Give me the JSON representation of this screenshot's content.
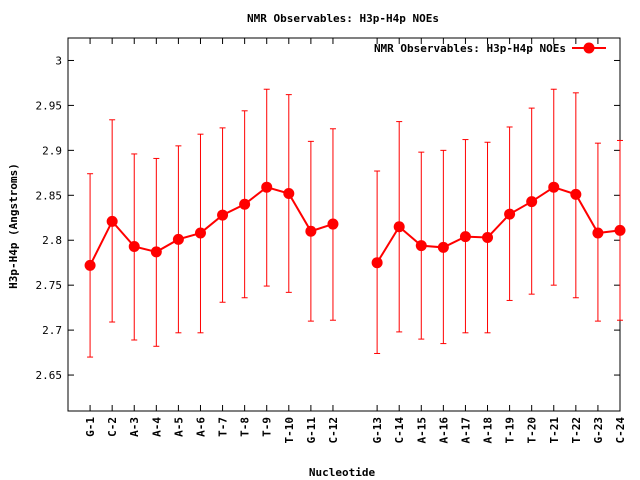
{
  "chart_data": {
    "type": "line",
    "title": "NMR Observables: H3p-H4p NOEs",
    "xlabel": "Nucleotide",
    "ylabel": "H3p-H4p (Angstroms)",
    "ylim": [
      2.61,
      3.025
    ],
    "yticks": [
      2.65,
      2.7,
      2.75,
      2.8,
      2.85,
      2.9,
      2.95,
      3
    ],
    "ytick_labels": [
      "2.65",
      "2.7",
      "2.75",
      "2.8",
      "2.85",
      "2.9",
      "2.95",
      "3"
    ],
    "xlim": [
      0,
      25
    ],
    "legend": "top-right",
    "grid": false,
    "color": "#ff0000",
    "categories": [
      "G-1",
      "C-2",
      "A-3",
      "A-4",
      "A-5",
      "A-6",
      "T-7",
      "T-8",
      "T-9",
      "T-10",
      "G-11",
      "C-12",
      "G-13",
      "C-14",
      "A-15",
      "A-16",
      "A-17",
      "A-18",
      "T-19",
      "T-20",
      "T-21",
      "T-22",
      "G-23",
      "C-24"
    ],
    "x": [
      1,
      2,
      3,
      4,
      5,
      6,
      7,
      8,
      9,
      10,
      11,
      12,
      14,
      15,
      16,
      17,
      18,
      19,
      20,
      21,
      22,
      23,
      24,
      25
    ],
    "series": [
      {
        "name": "NMR Observables: H3p-H4p NOEs",
        "values": [
          2.772,
          2.821,
          2.793,
          2.787,
          2.801,
          2.808,
          2.828,
          2.84,
          2.859,
          2.852,
          2.81,
          2.818,
          2.775,
          2.815,
          2.794,
          2.792,
          2.804,
          2.803,
          2.829,
          2.843,
          2.859,
          2.851,
          2.808,
          2.811
        ],
        "err_low": [
          2.67,
          2.709,
          2.689,
          2.682,
          2.697,
          2.697,
          2.731,
          2.736,
          2.749,
          2.742,
          2.71,
          2.711,
          2.674,
          2.698,
          2.69,
          2.685,
          2.697,
          2.697,
          2.733,
          2.74,
          2.75,
          2.736,
          2.71,
          2.711
        ],
        "err_high": [
          2.874,
          2.934,
          2.896,
          2.891,
          2.905,
          2.918,
          2.925,
          2.944,
          2.968,
          2.962,
          2.91,
          2.924,
          2.877,
          2.932,
          2.898,
          2.9,
          2.912,
          2.909,
          2.926,
          2.947,
          2.968,
          2.964,
          2.908,
          2.911
        ]
      }
    ]
  }
}
